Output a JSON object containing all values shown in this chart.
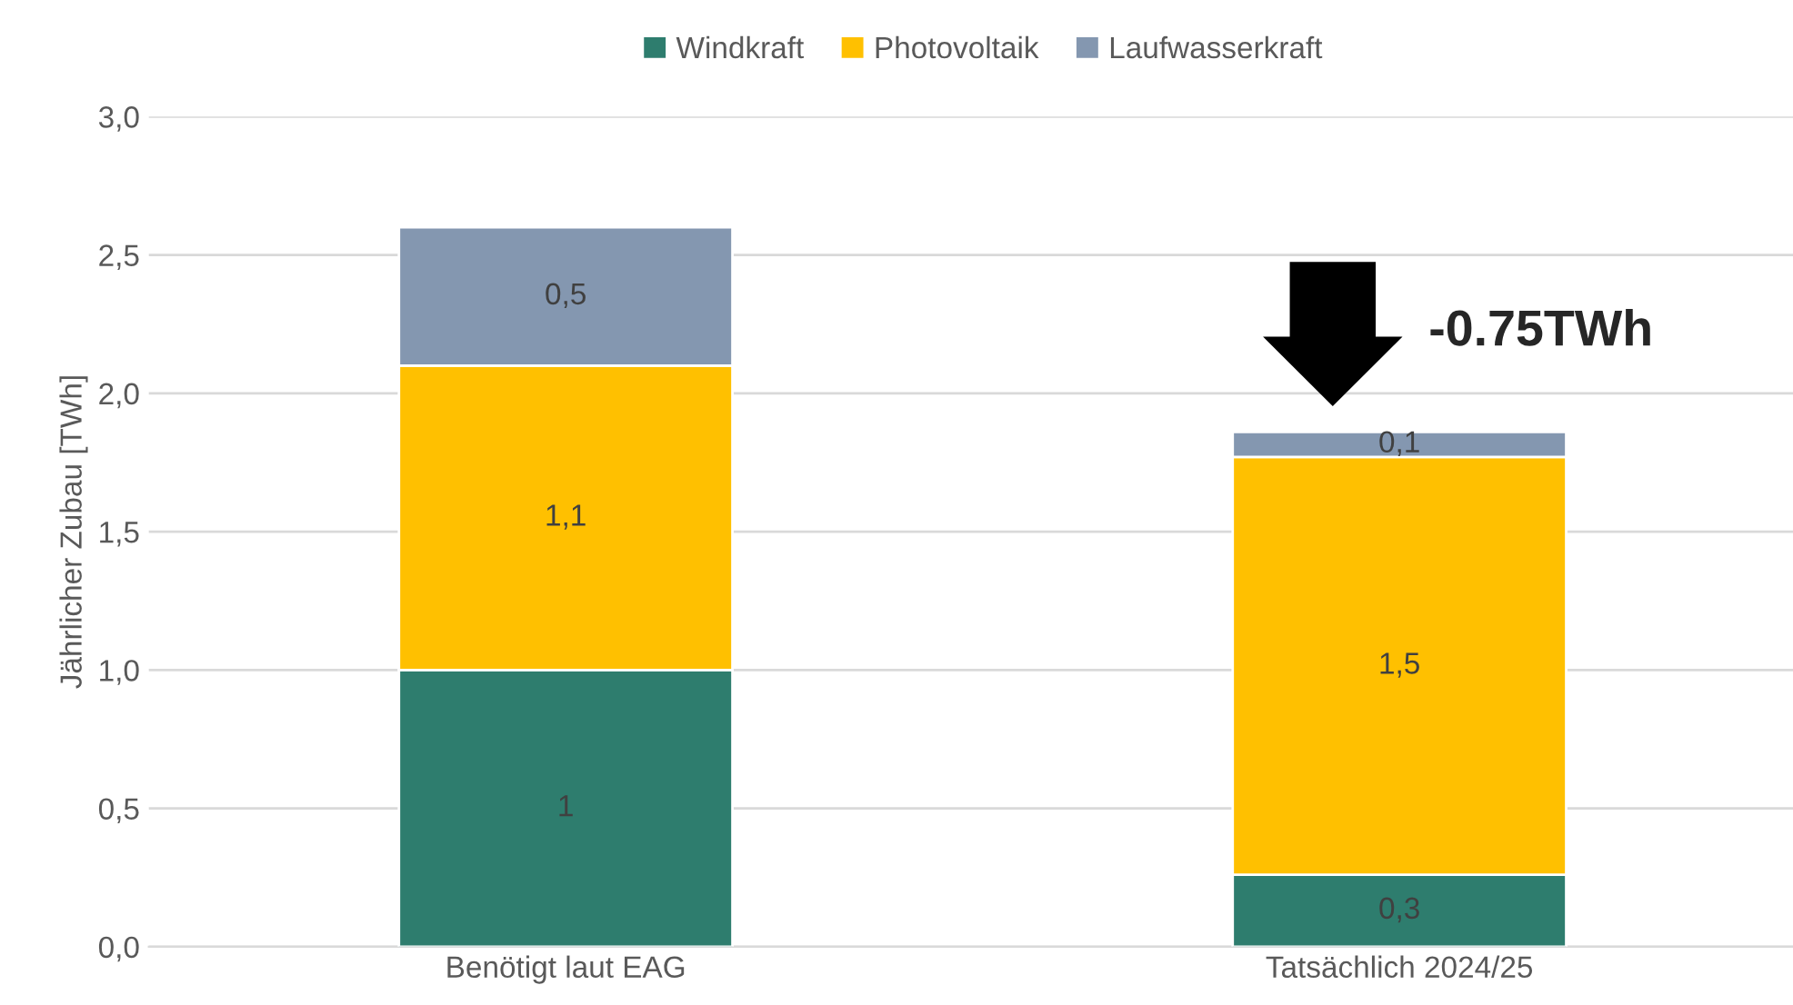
{
  "chart_data": {
    "type": "bar",
    "stacked": true,
    "ylabel": "Jährlicher Zubau [TWh]",
    "categories": [
      "Benötigt laut EAG",
      "Tatsächlich 2024/25"
    ],
    "series": [
      {
        "name": "Windkraft",
        "color": "#2e7d6e",
        "values": [
          1,
          0.26
        ],
        "value_labels": [
          "1",
          "0,3"
        ]
      },
      {
        "name": "Photovoltaik",
        "color": "#ffc000",
        "values": [
          1.1,
          1.51
        ],
        "value_labels": [
          "1,1",
          "1,5"
        ]
      },
      {
        "name": "Laufwasserkraft",
        "color": "#8497b0",
        "values": [
          0.5,
          0.09
        ],
        "value_labels": [
          "0,5",
          "0,1"
        ]
      }
    ],
    "ylim": [
      0,
      3
    ],
    "yticks": [
      {
        "value": 0,
        "label": "0,0"
      },
      {
        "value": 0.5,
        "label": "0,5"
      },
      {
        "value": 1,
        "label": "1,0"
      },
      {
        "value": 1.5,
        "label": "1,5"
      },
      {
        "value": 2,
        "label": "2,0"
      },
      {
        "value": 2.5,
        "label": "2,5"
      },
      {
        "value": 3,
        "label": "3,0"
      }
    ],
    "grid": "y",
    "legend": "top",
    "annotations": [
      "-0.75TWh"
    ]
  }
}
